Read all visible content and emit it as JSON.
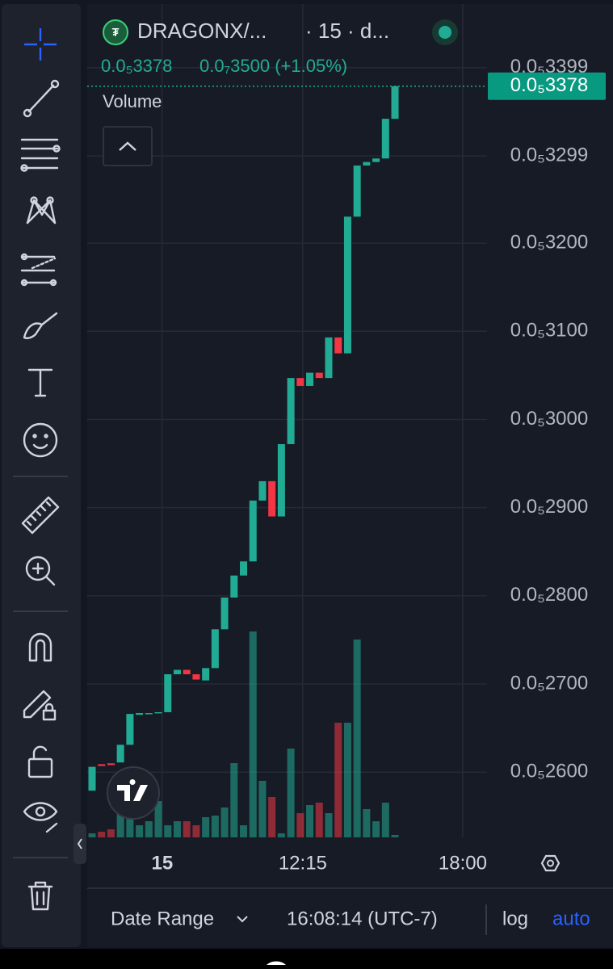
{
  "header": {
    "symbol": "DRAGONX/...",
    "interval": "· 15 · d...",
    "price": "0.0₅3378",
    "change": "0.0₇3500 (+1.05%)"
  },
  "volume_label": "Volume",
  "last_price_label": "0.0₅3378",
  "footer": {
    "date_range": "Date Range",
    "time": "16:08:14 (UTC-7)",
    "log": "log",
    "auto": "auto"
  },
  "chart_data": {
    "type": "candlestick",
    "up_color": "#22ab94",
    "down_color": "#f23645",
    "open": [
      2.579e-06,
      2.609e-06,
      2.61e-06,
      2.611e-06,
      2.631e-06,
      2.665e-06,
      2.666e-06,
      2.667e-06,
      2.668e-06,
      2.711e-06,
      2.716e-06,
      2.711e-06,
      2.704e-06,
      2.718e-06,
      2.762e-06,
      2.798e-06,
      2.823e-06,
      2.839e-06,
      2.908e-06,
      2.93e-06,
      2.89e-06,
      2.972e-06,
      3.047e-06,
      3.038e-06,
      3.053e-06,
      3.047e-06,
      3.093e-06,
      3.075e-06,
      3.23e-06,
      3.288e-06,
      3.292e-06,
      3.296e-06,
      3.341e-06
    ],
    "close": [
      2.606e-06,
      2.607e-06,
      2.608e-06,
      2.631e-06,
      2.666e-06,
      2.667e-06,
      2.667e-06,
      2.668e-06,
      2.711e-06,
      2.716e-06,
      2.711e-06,
      2.705e-06,
      2.718e-06,
      2.762e-06,
      2.798e-06,
      2.823e-06,
      2.839e-06,
      2.908e-06,
      2.93e-06,
      2.89e-06,
      2.972e-06,
      3.047e-06,
      3.038e-06,
      3.053e-06,
      3.047e-06,
      3.093e-06,
      3.075e-06,
      3.23e-06,
      3.288e-06,
      3.292e-06,
      3.296e-06,
      3.341e-06,
      3.378e-06
    ],
    "volume": [
      5,
      7,
      10,
      40,
      25,
      15,
      20,
      45,
      15,
      20,
      20,
      15,
      25,
      27,
      37,
      92,
      15,
      255,
      70,
      50,
      5,
      110,
      30,
      40,
      43,
      30,
      142,
      142,
      245,
      35,
      20,
      43,
      3
    ],
    "ylim": [
      2.526e-06,
      3.462e-06
    ],
    "yticks": [
      {
        "value": 2.6e-06,
        "label": "0.0₅2600"
      },
      {
        "value": 2.7e-06,
        "label": "0.0₅2700"
      },
      {
        "value": 2.8e-06,
        "label": "0.0₅2800"
      },
      {
        "value": 2.9e-06,
        "label": "0.0₅2900"
      },
      {
        "value": 3e-06,
        "label": "0.0₅3000"
      },
      {
        "value": 3.1e-06,
        "label": "0.0₅3100"
      },
      {
        "value": 3.2e-06,
        "label": "0.0₅3200"
      },
      {
        "value": 3.299e-06,
        "label": "0.0₅3299"
      },
      {
        "value": 3.399e-06,
        "label": "0.0₅3399"
      }
    ],
    "xlim": [
      0,
      42.4
    ],
    "xticks": [
      {
        "value": 7.75,
        "label": "15"
      },
      {
        "value": 22.6,
        "label": "12:15"
      },
      {
        "value": 39.5,
        "label": "18:00"
      }
    ],
    "grid": true
  }
}
